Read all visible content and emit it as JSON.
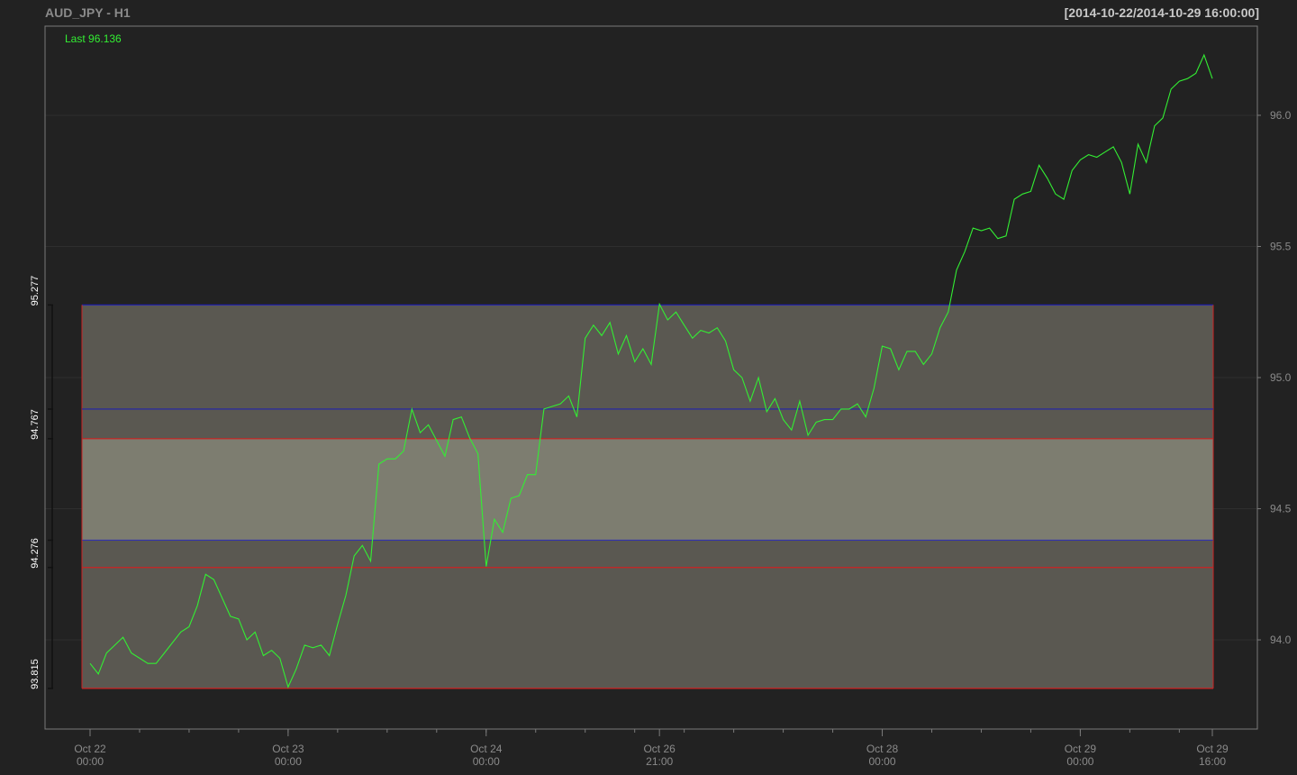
{
  "header": {
    "title": "AUD_JPY - H1",
    "range": "[2014-10-22/2014-10-29 16:00:00]"
  },
  "chart_data": {
    "type": "line",
    "title": "AUD_JPY - H1",
    "last_label": "Last 96.136",
    "series": [
      {
        "name": "AUD_JPY",
        "color": "#33ee33",
        "values": [
          93.91,
          93.87,
          93.95,
          93.98,
          94.01,
          93.95,
          93.93,
          93.91,
          93.91,
          93.95,
          93.99,
          94.03,
          94.05,
          94.13,
          94.25,
          94.23,
          94.16,
          94.09,
          94.08,
          94.0,
          94.03,
          93.94,
          93.96,
          93.93,
          93.82,
          93.89,
          93.98,
          93.97,
          93.98,
          93.94,
          94.06,
          94.17,
          94.32,
          94.36,
          94.3,
          94.67,
          94.69,
          94.69,
          94.72,
          94.88,
          94.79,
          94.82,
          94.76,
          94.7,
          94.84,
          94.85,
          94.77,
          94.71,
          94.28,
          94.46,
          94.41,
          94.54,
          94.55,
          94.63,
          94.63,
          94.88,
          94.89,
          94.9,
          94.93,
          94.85,
          95.15,
          95.2,
          95.16,
          95.21,
          95.09,
          95.16,
          95.06,
          95.11,
          95.05,
          95.28,
          95.22,
          95.25,
          95.2,
          95.15,
          95.18,
          95.17,
          95.19,
          95.14,
          95.03,
          95.0,
          94.91,
          95.0,
          94.87,
          94.92,
          94.84,
          94.8,
          94.91,
          94.78,
          94.83,
          94.84,
          94.84,
          94.88,
          94.88,
          94.9,
          94.85,
          94.96,
          95.12,
          95.11,
          95.03,
          95.1,
          95.1,
          95.05,
          95.09,
          95.19,
          95.25,
          95.41,
          95.48,
          95.57,
          95.56,
          95.57,
          95.53,
          95.54,
          95.68,
          95.7,
          95.71,
          95.81,
          95.76,
          95.7,
          95.68,
          95.79,
          95.83,
          95.85,
          95.84,
          95.86,
          95.88,
          95.82,
          95.7,
          95.89,
          95.82,
          95.96,
          95.99,
          96.1,
          96.13,
          96.14,
          96.16,
          96.23,
          96.14
        ]
      }
    ],
    "y_ticks": [
      "94.0",
      "94.5",
      "95.0",
      "95.5",
      "96.0"
    ],
    "y_tick_values": [
      94.0,
      94.5,
      95.0,
      95.5,
      96.0
    ],
    "ylim": [
      93.66,
      96.34
    ],
    "x_ticks": [
      {
        "label1": "Oct 22",
        "label2": "00:00",
        "index": 0
      },
      {
        "label1": "Oct 23",
        "label2": "00:00",
        "index": 24
      },
      {
        "label1": "Oct 24",
        "label2": "00:00",
        "index": 48
      },
      {
        "label1": "Oct 26",
        "label2": "21:00",
        "index": 69
      },
      {
        "label1": "Oct 28",
        "label2": "00:00",
        "index": 96
      },
      {
        "label1": "Oct 29",
        "label2": "00:00",
        "index": 120
      },
      {
        "label1": "Oct 29",
        "label2": "16:00",
        "index": 136
      }
    ],
    "levels": [
      {
        "label": "95.277",
        "value": 95.277
      },
      {
        "label": "94.767",
        "value": 94.767
      },
      {
        "label": "94.276",
        "value": 94.276
      },
      {
        "label": "93.815",
        "value": 93.815
      }
    ],
    "bands": [
      {
        "name": "outer",
        "top": 95.277,
        "bottom": 93.815,
        "fill": "#5a5851",
        "edge_top": "#2222aa",
        "edge_bottom": "#cc2222"
      },
      {
        "name": "inner",
        "top": 94.767,
        "bottom": 94.38,
        "fill": "#7d7d70",
        "edge_top": "#cc2222",
        "edge_bottom": "#3333aa"
      }
    ],
    "band_lines": [
      {
        "value": 94.88,
        "color": "#2222aa"
      },
      {
        "value": 94.276,
        "color": "#cc2222"
      }
    ],
    "grid": true
  }
}
